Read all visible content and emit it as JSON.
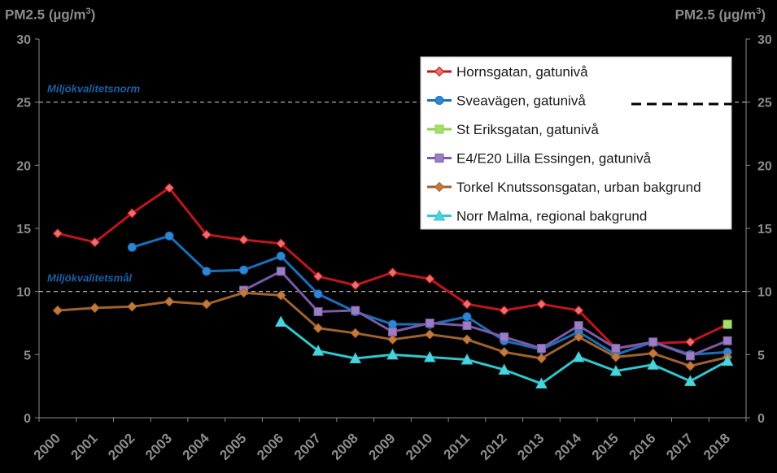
{
  "chart_data": {
    "type": "line",
    "unit_label_left": {
      "main": "PM2.5 (µg/m",
      "sup": "3",
      "close": ")"
    },
    "unit_label_right": {
      "main": "PM2.5 (µg/m",
      "sup": "3",
      "close": ")"
    },
    "ylim": [
      0,
      30
    ],
    "yticks": [
      0,
      5,
      10,
      15,
      20,
      25,
      30
    ],
    "x": [
      "2000",
      "2001",
      "2002",
      "2003",
      "2004",
      "2005",
      "2006",
      "2007",
      "2008",
      "2009",
      "2010",
      "2011",
      "2012",
      "2013",
      "2014",
      "2015",
      "2016",
      "2017",
      "2018"
    ],
    "grid": false,
    "legend_position": "top-right",
    "reference_lines": [
      {
        "label": "Miljökvalitetsnorm",
        "value": 25,
        "color": "#bfbfbf"
      },
      {
        "label": "Miljökvalitetsmål",
        "value": 10,
        "color": "#bfbfbf"
      }
    ],
    "series": [
      {
        "name": "Hornsgatan, gatunivå",
        "color": "#c0161c",
        "marker": "diamond",
        "marker_fill": "#e8706e",
        "values": [
          14.6,
          13.9,
          16.2,
          18.2,
          14.5,
          14.1,
          13.8,
          11.2,
          10.5,
          11.5,
          11.0,
          9.0,
          8.5,
          9.0,
          8.5,
          5.5,
          5.9,
          6.0,
          7.4
        ]
      },
      {
        "name": "Sveavägen, gatunivå",
        "color": "#1a6fba",
        "marker": "circle",
        "marker_fill": "#2e86d4",
        "values": [
          null,
          null,
          13.5,
          14.4,
          11.6,
          11.7,
          12.8,
          9.8,
          8.4,
          7.4,
          7.4,
          8.0,
          6.1,
          5.4,
          6.8,
          5.0,
          6.0,
          5.0,
          5.2
        ]
      },
      {
        "name": "St Eriksgatan, gatunivå",
        "color": "#8ed14a",
        "marker": "square",
        "marker_fill": "#a8dc6a",
        "values": [
          null,
          null,
          null,
          null,
          null,
          null,
          null,
          null,
          null,
          null,
          null,
          null,
          null,
          null,
          null,
          null,
          null,
          null,
          7.4
        ]
      },
      {
        "name": "E4/E20 Lilla Essingen, gatunivå",
        "color": "#7b5aa6",
        "marker": "square",
        "marker_fill": "#9a7fc4",
        "values": [
          null,
          null,
          null,
          null,
          null,
          10.1,
          11.6,
          8.4,
          8.5,
          6.8,
          7.5,
          7.3,
          6.4,
          5.5,
          7.3,
          5.5,
          6.0,
          4.9,
          6.1
        ]
      },
      {
        "name": "Torkel Knutssonsgatan, urban bakgrund",
        "color": "#a0622d",
        "marker": "diamond",
        "marker_fill": "#c47a3c",
        "values": [
          8.5,
          8.7,
          8.8,
          9.2,
          9.0,
          9.9,
          9.7,
          7.1,
          6.7,
          6.2,
          6.6,
          6.2,
          5.2,
          4.7,
          6.4,
          4.8,
          5.1,
          4.1,
          4.8
        ]
      },
      {
        "name": "Norr Malma, regional bakgrund",
        "color": "#33c6cf",
        "marker": "triangle",
        "marker_fill": "#4fd3db",
        "values": [
          null,
          null,
          null,
          null,
          null,
          null,
          7.6,
          5.3,
          4.7,
          5.0,
          4.8,
          4.6,
          3.8,
          2.7,
          4.8,
          3.7,
          4.2,
          2.9,
          4.5
        ]
      }
    ]
  }
}
